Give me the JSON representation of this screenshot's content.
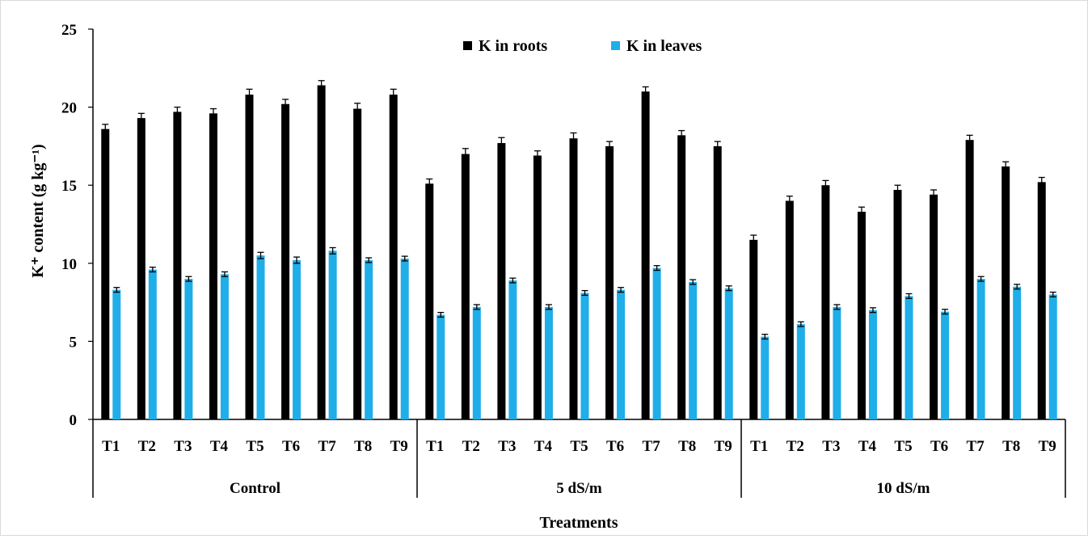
{
  "chart_data": {
    "type": "bar",
    "ylabel": "K⁺ content (g kg⁻¹)",
    "xlabel": "Treatments",
    "ylim": [
      0,
      25
    ],
    "yticks": [
      "0",
      "5",
      "10",
      "15",
      "20",
      "25"
    ],
    "groups": [
      {
        "name": "Control",
        "categories": [
          "T1",
          "T2",
          "T3",
          "T4",
          "T5",
          "T6",
          "T7",
          "T8",
          "T9"
        ]
      },
      {
        "name": "5 dS/m",
        "categories": [
          "T1",
          "T2",
          "T3",
          "T4",
          "T5",
          "T6",
          "T7",
          "T8",
          "T9"
        ]
      },
      {
        "name": "10 dS/m",
        "categories": [
          "T1",
          "T2",
          "T3",
          "T4",
          "T5",
          "T6",
          "T7",
          "T8",
          "T9"
        ]
      }
    ],
    "series": [
      {
        "name": "K in roots",
        "color": "#000000",
        "values": [
          18.6,
          19.3,
          19.7,
          19.6,
          20.8,
          20.2,
          21.4,
          19.9,
          20.8,
          15.1,
          17.0,
          17.7,
          16.9,
          18.0,
          17.5,
          21.0,
          18.2,
          17.5,
          11.5,
          14.0,
          15.0,
          13.3,
          14.7,
          14.4,
          17.9,
          16.2,
          15.2
        ],
        "errors": [
          0.3,
          0.3,
          0.3,
          0.3,
          0.35,
          0.3,
          0.3,
          0.35,
          0.35,
          0.3,
          0.35,
          0.35,
          0.3,
          0.35,
          0.3,
          0.3,
          0.3,
          0.3,
          0.3,
          0.3,
          0.3,
          0.3,
          0.3,
          0.3,
          0.3,
          0.3,
          0.3
        ]
      },
      {
        "name": "K in leaves",
        "color": "#1FAEE8",
        "values": [
          8.3,
          9.6,
          9.0,
          9.3,
          10.5,
          10.2,
          10.8,
          10.2,
          10.3,
          6.7,
          7.2,
          8.9,
          7.2,
          8.1,
          8.3,
          9.7,
          8.8,
          8.4,
          5.3,
          6.1,
          7.2,
          7.0,
          7.9,
          6.9,
          9.0,
          8.5,
          8.0
        ],
        "errors": [
          0.15,
          0.15,
          0.15,
          0.15,
          0.2,
          0.2,
          0.2,
          0.15,
          0.15,
          0.15,
          0.15,
          0.15,
          0.15,
          0.15,
          0.15,
          0.15,
          0.15,
          0.15,
          0.15,
          0.15,
          0.15,
          0.15,
          0.15,
          0.15,
          0.15,
          0.15,
          0.15
        ]
      }
    ],
    "legend_position": "top-center",
    "grid": false
  }
}
